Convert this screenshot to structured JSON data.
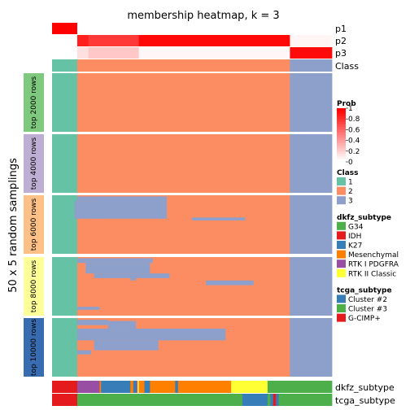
{
  "chart_data": {
    "type": "heatmap",
    "title": "membership heatmap, k = 3",
    "ylabel": "50 x 5 random samplings",
    "colors": {
      "class_1": "#66C2A5",
      "class_2": "#FC8D62",
      "class_3": "#8DA0CB",
      "prob_high": "#FF0000",
      "prob_low": "#FFFFFF",
      "section_bg": "#ffffff"
    },
    "prob_rows": [
      {
        "label": "p1",
        "segments": [
          {
            "from": 0.0,
            "to": 0.09,
            "p": 1.0
          },
          {
            "from": 0.09,
            "to": 1.0,
            "p": 0.0
          }
        ]
      },
      {
        "label": "p2",
        "segments": [
          {
            "from": 0.0,
            "to": 0.09,
            "p": 0.0
          },
          {
            "from": 0.09,
            "to": 0.13,
            "p": 0.88
          },
          {
            "from": 0.13,
            "to": 0.31,
            "p": 0.78
          },
          {
            "from": 0.31,
            "to": 0.85,
            "p": 0.97
          },
          {
            "from": 0.85,
            "to": 1.0,
            "p": 0.04
          }
        ]
      },
      {
        "label": "p3",
        "segments": [
          {
            "from": 0.0,
            "to": 0.09,
            "p": 0.0
          },
          {
            "from": 0.09,
            "to": 0.13,
            "p": 0.12
          },
          {
            "from": 0.13,
            "to": 0.31,
            "p": 0.22
          },
          {
            "from": 0.31,
            "to": 0.85,
            "p": 0.03
          },
          {
            "from": 0.85,
            "to": 1.0,
            "p": 0.96
          }
        ]
      }
    ],
    "class_row": {
      "label": "Class",
      "segments": [
        {
          "from": 0.0,
          "to": 0.09,
          "class": "1"
        },
        {
          "from": 0.09,
          "to": 0.85,
          "class": "2"
        },
        {
          "from": 0.85,
          "to": 1.0,
          "class": "3"
        }
      ]
    },
    "base_columns": [
      {
        "from": 0.0,
        "to": 0.09,
        "class": "1"
      },
      {
        "from": 0.09,
        "to": 0.85,
        "class": "2"
      },
      {
        "from": 0.85,
        "to": 1.0,
        "class": "3"
      }
    ],
    "sections": [
      {
        "label": "top 2000 rows",
        "color": "#7FC97F",
        "overrides": []
      },
      {
        "label": "top 4000 rows",
        "color": "#BEAED4",
        "overrides": []
      },
      {
        "label": "top 6000 rows",
        "color": "#FDC086",
        "overrides": [
          {
            "x0": 0.09,
            "x1": 0.15,
            "y0": 0.02,
            "y1": 0.1,
            "class": "3"
          },
          {
            "x0": 0.15,
            "x1": 0.41,
            "y0": 0.02,
            "y1": 0.4,
            "class": "3"
          },
          {
            "x0": 0.08,
            "x1": 0.18,
            "y0": 0.1,
            "y1": 0.4,
            "class": "3"
          },
          {
            "x0": 0.5,
            "x1": 0.69,
            "y0": 0.38,
            "y1": 0.43,
            "class": "3"
          }
        ]
      },
      {
        "label": "top 8000 rows",
        "color": "#FFFF99",
        "overrides": [
          {
            "x0": 0.09,
            "x1": 0.36,
            "y0": 0.02,
            "y1": 0.1,
            "class": "3"
          },
          {
            "x0": 0.12,
            "x1": 0.35,
            "y0": 0.1,
            "y1": 0.28,
            "class": "3"
          },
          {
            "x0": 0.15,
            "x1": 0.42,
            "y0": 0.28,
            "y1": 0.36,
            "class": "3"
          },
          {
            "x0": 0.28,
            "x1": 0.3,
            "y0": 0.36,
            "y1": 0.4,
            "class": "3"
          },
          {
            "x0": 0.55,
            "x1": 0.72,
            "y0": 0.4,
            "y1": 0.48,
            "class": "3"
          },
          {
            "x0": 0.09,
            "x1": 0.17,
            "y0": 0.85,
            "y1": 0.9,
            "class": "3"
          }
        ]
      },
      {
        "label": "top 10000 rows",
        "color": "#386CB0",
        "overrides": [
          {
            "x0": 0.09,
            "x1": 0.2,
            "y0": 0.03,
            "y1": 0.12,
            "class": "3"
          },
          {
            "x0": 0.2,
            "x1": 0.3,
            "y0": 0.05,
            "y1": 0.18,
            "class": "3"
          },
          {
            "x0": 0.09,
            "x1": 0.62,
            "y0": 0.18,
            "y1": 0.38,
            "class": "3"
          },
          {
            "x0": 0.15,
            "x1": 0.38,
            "y0": 0.38,
            "y1": 0.55,
            "class": "3"
          },
          {
            "x0": 0.09,
            "x1": 0.14,
            "y0": 0.55,
            "y1": 0.62,
            "class": "3"
          }
        ]
      }
    ],
    "bottom_annotations": [
      {
        "label": "dkfz_subtype",
        "segments": [
          {
            "from": 0.0,
            "to": 0.09,
            "color": "#E41A1C"
          },
          {
            "from": 0.09,
            "to": 0.17,
            "color": "#984EA3"
          },
          {
            "from": 0.17,
            "to": 0.175,
            "color": "#FF7F00"
          },
          {
            "from": 0.175,
            "to": 0.28,
            "color": "#377EB8"
          },
          {
            "from": 0.28,
            "to": 0.29,
            "color": "#FF7F00"
          },
          {
            "from": 0.29,
            "to": 0.3,
            "color": "#377EB8"
          },
          {
            "from": 0.3,
            "to": 0.305,
            "color": "#984EA3"
          },
          {
            "from": 0.305,
            "to": 0.31,
            "color": "#FFFF33"
          },
          {
            "from": 0.31,
            "to": 0.33,
            "color": "#FF7F00"
          },
          {
            "from": 0.33,
            "to": 0.35,
            "color": "#377EB8"
          },
          {
            "from": 0.35,
            "to": 0.44,
            "color": "#FF7F00"
          },
          {
            "from": 0.44,
            "to": 0.45,
            "color": "#377EB8"
          },
          {
            "from": 0.45,
            "to": 0.64,
            "color": "#FF7F00"
          },
          {
            "from": 0.64,
            "to": 0.77,
            "color": "#FFFF33"
          },
          {
            "from": 0.77,
            "to": 1.0,
            "color": "#4DAF4A"
          }
        ]
      },
      {
        "label": "tcga_subtype",
        "segments": [
          {
            "from": 0.0,
            "to": 0.09,
            "color": "#E41A1C"
          },
          {
            "from": 0.09,
            "to": 0.68,
            "color": "#4DAF4A"
          },
          {
            "from": 0.68,
            "to": 0.77,
            "color": "#377EB8"
          },
          {
            "from": 0.77,
            "to": 0.78,
            "color": "#4DAF4A"
          },
          {
            "from": 0.78,
            "to": 0.79,
            "color": "#377EB8"
          },
          {
            "from": 0.79,
            "to": 0.8,
            "color": "#E41A1C"
          },
          {
            "from": 0.8,
            "to": 0.81,
            "color": "#377EB8"
          },
          {
            "from": 0.81,
            "to": 1.0,
            "color": "#4DAF4A"
          }
        ]
      }
    ],
    "legends": [
      {
        "title": "Prob",
        "kind": "gradient",
        "ticks": [
          "1",
          "0.8",
          "0.6",
          "0.4",
          "0.2",
          "0"
        ]
      },
      {
        "title": "Class",
        "kind": "discrete",
        "items": [
          {
            "label": "1",
            "color": "#66C2A5"
          },
          {
            "label": "2",
            "color": "#FC8D62"
          },
          {
            "label": "3",
            "color": "#8DA0CB"
          }
        ]
      },
      {
        "title": "dkfz_subtype",
        "kind": "discrete",
        "items": [
          {
            "label": "G34",
            "color": "#4DAF4A"
          },
          {
            "label": "IDH",
            "color": "#E41A1C"
          },
          {
            "label": "K27",
            "color": "#377EB8"
          },
          {
            "label": "Mesenchymal",
            "color": "#FF7F00"
          },
          {
            "label": "RTK I PDGFRA",
            "color": "#984EA3"
          },
          {
            "label": "RTK II Classic",
            "color": "#FFFF33"
          }
        ]
      },
      {
        "title": "tcga_subtype",
        "kind": "discrete",
        "items": [
          {
            "label": "Cluster #2",
            "color": "#377EB8"
          },
          {
            "label": "Cluster #3",
            "color": "#4DAF4A"
          },
          {
            "label": "G-CIMP+",
            "color": "#E41A1C"
          }
        ]
      }
    ]
  }
}
